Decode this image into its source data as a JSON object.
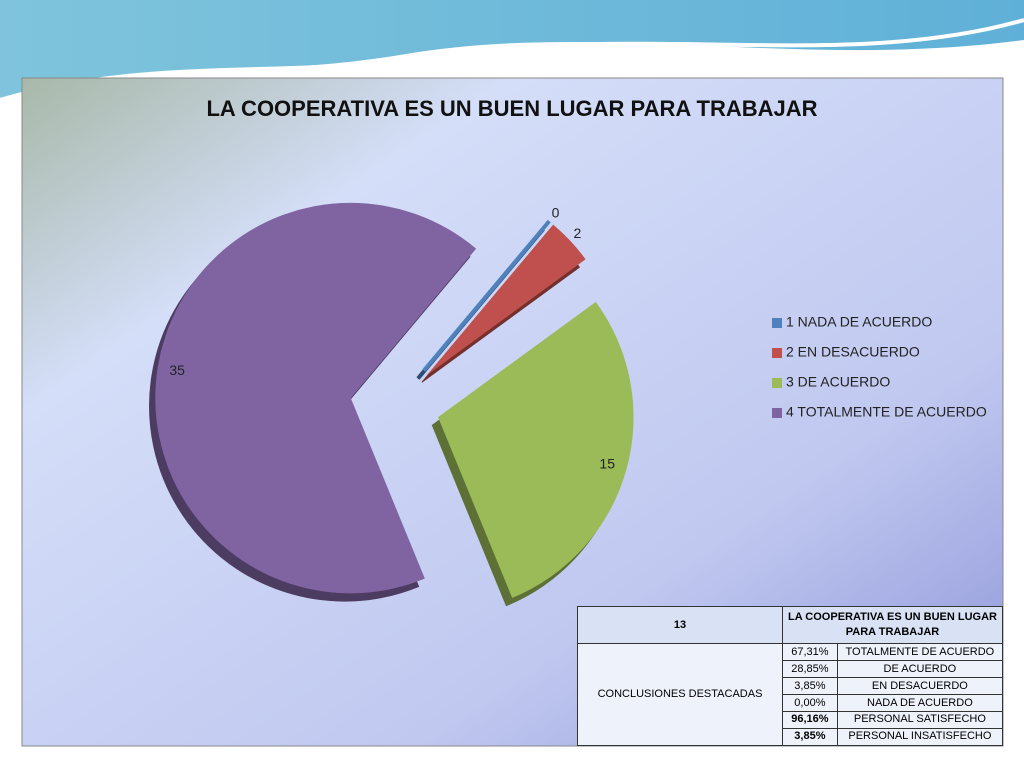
{
  "chart_data": {
    "type": "pie",
    "title": "LA COOPERATIVA ES UN BUEN LUGAR PARA TRABAJAR",
    "categories": [
      "1 NADA DE ACUERDO",
      "2 EN DESACUERDO",
      "3 DE ACUERDO",
      "4 TOTALMENTE DE ACUERDO"
    ],
    "values": [
      0,
      2,
      15,
      35
    ],
    "colors": [
      "#4f81bd",
      "#c0504d",
      "#9bbb59",
      "#8064a2"
    ],
    "legend": "right"
  },
  "table": {
    "header": [
      "13",
      "LA COOPERATIVA ES UN BUEN LUGAR PARA TRABAJAR"
    ],
    "side_label": "CONCLUSIONES DESTACADAS",
    "rows": [
      [
        "67,31%",
        "TOTALMENTE DE ACUERDO"
      ],
      [
        "28,85%",
        "DE ACUERDO"
      ],
      [
        "3,85%",
        "EN DESACUERDO"
      ],
      [
        "0,00%",
        "NADA DE ACUERDO"
      ],
      [
        "96,16%",
        "PERSONAL SATISFECHO"
      ],
      [
        "3,85%",
        "PERSONAL INSATISFECHO"
      ]
    ]
  }
}
